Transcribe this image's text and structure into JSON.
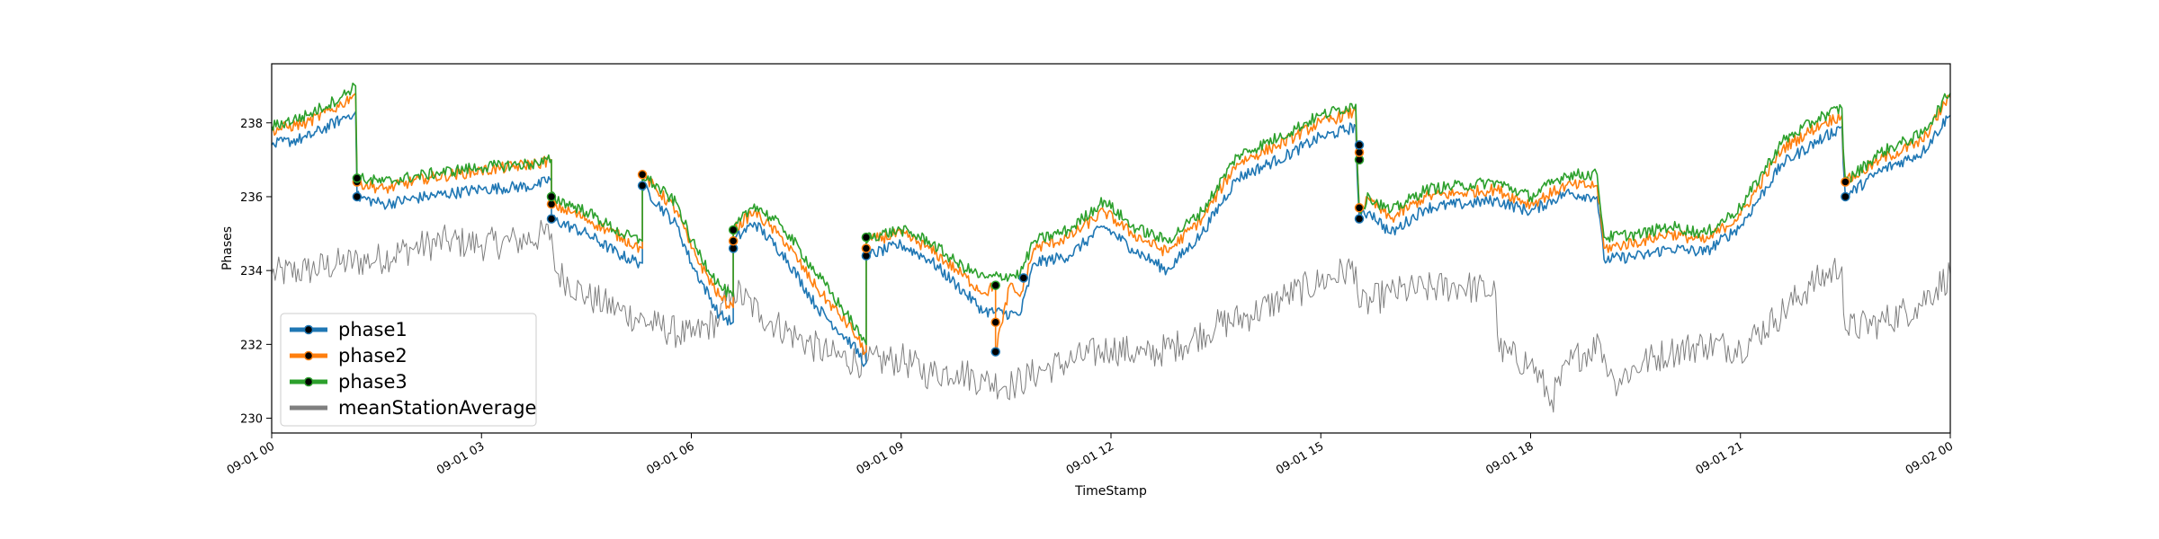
{
  "chart_data": {
    "type": "line",
    "title": "",
    "xlabel": "TimeStamp",
    "ylabel": "Phases",
    "xlim": [
      "09-01 00:00",
      "09-02 00:00"
    ],
    "ylim": [
      229.6,
      239.6
    ],
    "grid": false,
    "legend_position": "lower-left",
    "x_ticks": [
      {
        "label": "09-01 00",
        "hour": 0
      },
      {
        "label": "09-01 03",
        "hour": 3
      },
      {
        "label": "09-01 06",
        "hour": 6
      },
      {
        "label": "09-01 09",
        "hour": 9
      },
      {
        "label": "09-01 12",
        "hour": 12
      },
      {
        "label": "09-01 15",
        "hour": 15
      },
      {
        "label": "09-01 18",
        "hour": 18
      },
      {
        "label": "09-01 21",
        "hour": 21
      },
      {
        "label": "09-02 00",
        "hour": 24
      }
    ],
    "y_ticks": [
      230,
      232,
      234,
      236,
      238
    ],
    "series": [
      {
        "name": "phase1",
        "color": "#1f77b4",
        "marker": "dot",
        "points": [
          [
            0,
            237.4
          ],
          [
            0.5,
            237.6
          ],
          [
            1.0,
            238.1
          ],
          [
            1.2,
            238.3
          ],
          [
            1.22,
            236.0
          ],
          [
            1.6,
            235.8
          ],
          [
            2.2,
            236.0
          ],
          [
            3.0,
            236.2
          ],
          [
            3.8,
            236.3
          ],
          [
            4.0,
            236.5
          ],
          [
            4.0,
            235.4
          ],
          [
            4.5,
            235.0
          ],
          [
            5.0,
            234.4
          ],
          [
            5.3,
            234.2
          ],
          [
            5.3,
            236.3
          ],
          [
            5.8,
            235.2
          ],
          [
            6.0,
            234.2
          ],
          [
            6.4,
            232.8
          ],
          [
            6.6,
            232.6
          ],
          [
            6.6,
            234.8
          ],
          [
            6.9,
            235.3
          ],
          [
            7.3,
            234.5
          ],
          [
            7.8,
            233.0
          ],
          [
            8.3,
            232.0
          ],
          [
            8.5,
            231.5
          ],
          [
            8.5,
            234.4
          ],
          [
            9.0,
            234.7
          ],
          [
            9.4,
            234.3
          ],
          [
            9.8,
            233.6
          ],
          [
            10.2,
            232.9
          ],
          [
            10.7,
            232.8
          ],
          [
            10.9,
            234.2
          ],
          [
            11.4,
            234.4
          ],
          [
            11.9,
            235.2
          ],
          [
            12.3,
            234.6
          ],
          [
            12.8,
            234.0
          ],
          [
            13.3,
            235.0
          ],
          [
            13.8,
            236.5
          ],
          [
            14.4,
            237.0
          ],
          [
            15.0,
            237.6
          ],
          [
            15.5,
            237.9
          ],
          [
            15.55,
            235.4
          ],
          [
            15.7,
            235.6
          ],
          [
            16.0,
            235.0
          ],
          [
            16.5,
            235.7
          ],
          [
            17.0,
            235.8
          ],
          [
            17.5,
            235.9
          ],
          [
            18.0,
            235.6
          ],
          [
            18.5,
            236.1
          ],
          [
            18.95,
            236.0
          ],
          [
            19.05,
            234.3
          ],
          [
            19.6,
            234.4
          ],
          [
            20.0,
            234.6
          ],
          [
            20.5,
            234.5
          ],
          [
            21.0,
            235.2
          ],
          [
            21.6,
            236.9
          ],
          [
            22.2,
            237.6
          ],
          [
            22.45,
            237.9
          ],
          [
            22.5,
            236.0
          ],
          [
            23.0,
            236.7
          ],
          [
            23.6,
            237.2
          ],
          [
            24,
            238.2
          ]
        ]
      },
      {
        "name": "phase2",
        "color": "#ff7f0e",
        "marker": "dot",
        "points": [
          [
            0,
            237.8
          ],
          [
            0.5,
            238.0
          ],
          [
            1.0,
            238.5
          ],
          [
            1.2,
            238.8
          ],
          [
            1.22,
            236.4
          ],
          [
            1.6,
            236.2
          ],
          [
            2.2,
            236.5
          ],
          [
            3.0,
            236.7
          ],
          [
            3.8,
            236.9
          ],
          [
            4.0,
            237.0
          ],
          [
            4.0,
            235.8
          ],
          [
            4.5,
            235.4
          ],
          [
            5.0,
            234.9
          ],
          [
            5.3,
            234.6
          ],
          [
            5.3,
            236.6
          ],
          [
            5.8,
            235.6
          ],
          [
            6.0,
            234.6
          ],
          [
            6.4,
            233.3
          ],
          [
            6.6,
            233.0
          ],
          [
            6.6,
            235.1
          ],
          [
            6.9,
            235.6
          ],
          [
            7.3,
            234.9
          ],
          [
            7.8,
            233.5
          ],
          [
            8.3,
            232.4
          ],
          [
            8.5,
            231.8
          ],
          [
            8.5,
            234.8
          ],
          [
            9.0,
            235.0
          ],
          [
            9.4,
            234.6
          ],
          [
            9.8,
            234.0
          ],
          [
            10.2,
            233.4
          ],
          [
            10.35,
            233.6
          ],
          [
            10.35,
            231.8
          ],
          [
            10.45,
            232.6
          ],
          [
            10.55,
            233.6
          ],
          [
            10.7,
            233.3
          ],
          [
            10.9,
            234.6
          ],
          [
            11.4,
            234.9
          ],
          [
            11.9,
            235.6
          ],
          [
            12.3,
            235.0
          ],
          [
            12.8,
            234.5
          ],
          [
            13.3,
            235.4
          ],
          [
            13.8,
            236.9
          ],
          [
            14.4,
            237.4
          ],
          [
            15.0,
            238.0
          ],
          [
            15.5,
            238.3
          ],
          [
            15.55,
            235.7
          ],
          [
            15.7,
            235.9
          ],
          [
            16.0,
            235.4
          ],
          [
            16.5,
            236.0
          ],
          [
            17.0,
            236.1
          ],
          [
            17.5,
            236.2
          ],
          [
            18.0,
            235.8
          ],
          [
            18.5,
            236.3
          ],
          [
            18.95,
            236.3
          ],
          [
            19.05,
            234.6
          ],
          [
            19.6,
            234.8
          ],
          [
            20.0,
            235.0
          ],
          [
            20.5,
            234.8
          ],
          [
            21.0,
            235.5
          ],
          [
            21.6,
            237.3
          ],
          [
            22.2,
            238.0
          ],
          [
            22.45,
            238.2
          ],
          [
            22.5,
            236.4
          ],
          [
            23.0,
            237.0
          ],
          [
            23.6,
            237.5
          ],
          [
            24,
            238.7
          ]
        ]
      },
      {
        "name": "phase3",
        "color": "#2ca02c",
        "marker": "dot",
        "points": [
          [
            0,
            237.9
          ],
          [
            0.5,
            238.2
          ],
          [
            1.0,
            238.7
          ],
          [
            1.2,
            239.0
          ],
          [
            1.22,
            236.5
          ],
          [
            1.6,
            236.4
          ],
          [
            2.2,
            236.6
          ],
          [
            3.0,
            236.8
          ],
          [
            3.8,
            236.9
          ],
          [
            4.0,
            237.0
          ],
          [
            4.0,
            236.0
          ],
          [
            4.5,
            235.6
          ],
          [
            5.0,
            235.0
          ],
          [
            5.3,
            234.8
          ],
          [
            5.3,
            236.6
          ],
          [
            5.8,
            235.8
          ],
          [
            6.0,
            234.8
          ],
          [
            6.4,
            233.6
          ],
          [
            6.6,
            233.3
          ],
          [
            6.6,
            235.1
          ],
          [
            6.9,
            235.8
          ],
          [
            7.3,
            235.2
          ],
          [
            7.8,
            233.9
          ],
          [
            8.3,
            232.6
          ],
          [
            8.5,
            232.0
          ],
          [
            8.5,
            234.9
          ],
          [
            9.0,
            235.1
          ],
          [
            9.4,
            234.8
          ],
          [
            9.8,
            234.2
          ],
          [
            10.2,
            233.8
          ],
          [
            10.7,
            233.9
          ],
          [
            10.9,
            234.8
          ],
          [
            11.4,
            235.1
          ],
          [
            11.9,
            235.9
          ],
          [
            12.3,
            235.2
          ],
          [
            12.8,
            234.8
          ],
          [
            13.3,
            235.6
          ],
          [
            13.8,
            237.1
          ],
          [
            14.4,
            237.6
          ],
          [
            15.0,
            238.2
          ],
          [
            15.5,
            238.5
          ],
          [
            15.55,
            235.6
          ],
          [
            15.7,
            236.0
          ],
          [
            16.0,
            235.6
          ],
          [
            16.5,
            236.2
          ],
          [
            17.0,
            236.3
          ],
          [
            17.5,
            236.4
          ],
          [
            18.0,
            236.0
          ],
          [
            18.5,
            236.6
          ],
          [
            18.95,
            236.6
          ],
          [
            19.05,
            234.9
          ],
          [
            19.6,
            235.0
          ],
          [
            20.0,
            235.2
          ],
          [
            20.5,
            235.0
          ],
          [
            21.0,
            235.7
          ],
          [
            21.6,
            237.5
          ],
          [
            22.2,
            238.2
          ],
          [
            22.45,
            238.4
          ],
          [
            22.5,
            236.4
          ],
          [
            23.0,
            237.2
          ],
          [
            23.6,
            237.7
          ],
          [
            24,
            238.8
          ]
        ]
      },
      {
        "name": "meanStationAverage",
        "color": "#7f7f7f",
        "marker": "none",
        "points": [
          [
            0,
            233.9
          ],
          [
            0.5,
            234.0
          ],
          [
            1.0,
            234.2
          ],
          [
            1.5,
            234.3
          ],
          [
            2.0,
            234.6
          ],
          [
            2.5,
            234.8
          ],
          [
            3.0,
            234.7
          ],
          [
            3.5,
            234.8
          ],
          [
            4.0,
            235.0
          ],
          [
            4.05,
            234.0
          ],
          [
            4.5,
            233.3
          ],
          [
            5.0,
            232.9
          ],
          [
            5.5,
            232.5
          ],
          [
            6.0,
            232.2
          ],
          [
            6.4,
            232.7
          ],
          [
            6.6,
            233.5
          ],
          [
            7.0,
            232.8
          ],
          [
            7.5,
            232.2
          ],
          [
            8.0,
            231.7
          ],
          [
            8.5,
            231.5
          ],
          [
            9.0,
            231.6
          ],
          [
            9.4,
            231.2
          ],
          [
            9.8,
            231.3
          ],
          [
            10.2,
            231.0
          ],
          [
            10.6,
            230.9
          ],
          [
            11.0,
            231.3
          ],
          [
            11.5,
            231.6
          ],
          [
            12.0,
            231.9
          ],
          [
            12.5,
            231.7
          ],
          [
            13.0,
            232.0
          ],
          [
            13.5,
            232.5
          ],
          [
            14.0,
            232.8
          ],
          [
            14.5,
            233.3
          ],
          [
            15.0,
            233.7
          ],
          [
            15.5,
            234.1
          ],
          [
            15.55,
            233.0
          ],
          [
            16.0,
            233.4
          ],
          [
            16.5,
            233.5
          ],
          [
            17.0,
            233.6
          ],
          [
            17.5,
            233.4
          ],
          [
            17.55,
            231.8
          ],
          [
            18.0,
            231.5
          ],
          [
            18.3,
            230.5
          ],
          [
            18.6,
            231.6
          ],
          [
            19.0,
            232.0
          ],
          [
            19.2,
            231.0
          ],
          [
            19.6,
            231.5
          ],
          [
            20.0,
            231.8
          ],
          [
            20.5,
            232.0
          ],
          [
            21.0,
            231.9
          ],
          [
            21.5,
            232.7
          ],
          [
            22.0,
            233.6
          ],
          [
            22.45,
            234.1
          ],
          [
            22.5,
            232.4
          ],
          [
            23.0,
            232.6
          ],
          [
            23.5,
            233.0
          ],
          [
            24,
            233.9
          ]
        ]
      }
    ],
    "event_markers": [
      {
        "hour": 1.22,
        "values": [
          236.0,
          236.4,
          236.5
        ]
      },
      {
        "hour": 4.0,
        "values": [
          235.4,
          235.8,
          236.0
        ]
      },
      {
        "hour": 5.3,
        "values": [
          236.3,
          236.6
        ]
      },
      {
        "hour": 6.6,
        "values": [
          234.6,
          234.8,
          235.1
        ]
      },
      {
        "hour": 8.5,
        "values": [
          234.4,
          234.6,
          234.9
        ]
      },
      {
        "hour": 10.35,
        "values": [
          231.8,
          232.6,
          233.6
        ]
      },
      {
        "hour": 10.75,
        "values": [
          233.8
        ]
      },
      {
        "hour": 15.55,
        "values": [
          235.4,
          235.7,
          237.0,
          237.2,
          237.4
        ]
      },
      {
        "hour": 22.5,
        "values": [
          236.0,
          236.4
        ]
      }
    ]
  }
}
